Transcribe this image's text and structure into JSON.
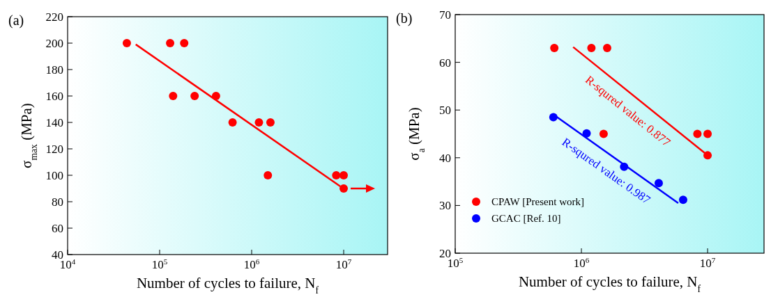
{
  "chart_data": [
    {
      "type": "scatter",
      "title": "(a)",
      "xlabel": "Number of cycles to failure, N$_{f}$",
      "ylabel": "σ$_{max}$ (MPa)",
      "log": "x",
      "xlim": [
        10000,
        30000000
      ],
      "xticks": [
        {
          "value": 10000,
          "label": "10$^{4}$"
        },
        {
          "value": 100000,
          "label": "10$^{5}$"
        },
        {
          "value": 1000000,
          "label": "10$^{6}$"
        },
        {
          "value": 10000000,
          "label": "10$^{7}$"
        }
      ],
      "ylim": [
        40,
        220
      ],
      "yticks": [
        40,
        60,
        80,
        100,
        120,
        140,
        160,
        180,
        200,
        220
      ],
      "series": [
        {
          "color": "#ff0000",
          "marker": "circle",
          "x": [
            44000,
            130000,
            185000,
            140000,
            240000,
            410000,
            620000,
            1200000,
            1600000,
            1500000,
            8300000,
            10000000,
            10000000
          ],
          "values": [
            200,
            200,
            200,
            160,
            160,
            160,
            140,
            140,
            140,
            100,
            100,
            100,
            90
          ]
        },
        {
          "type": "line",
          "color": "#ff0000",
          "x": [
            55000,
            9200000
          ],
          "values": [
            199,
            91.6
          ]
        }
      ]
    },
    {
      "type": "scatter",
      "title": "(b)",
      "xlabel": "Number of cycles to failure, N$_{f}$",
      "ylabel": "σ$_{a}$ (MPa)",
      "log": "x",
      "legend": "bottom left",
      "xlim": [
        100000,
        28000000
      ],
      "xticks": [
        {
          "value": 100000,
          "label": "10$^{5}$"
        },
        {
          "value": 1000000,
          "label": "10$^{6}$"
        },
        {
          "value": 10000000,
          "label": "10$^{7}$"
        }
      ],
      "ylim": [
        20,
        70
      ],
      "yticks": [
        20,
        30,
        40,
        50,
        60,
        70
      ],
      "series": [
        {
          "name": "CPAW [Present work]",
          "marker": "circle",
          "color": "#ff0000",
          "x": [
            610000,
            1200000,
            1600000,
            1500000,
            8300000,
            10000000,
            10000000
          ],
          "values": [
            63,
            63,
            63,
            45,
            45,
            45,
            40.5
          ]
        },
        {
          "name": "GCAC [Ref. 10]",
          "marker": "circle",
          "color": "#0000ff",
          "x": [
            600000,
            1100000,
            2180000,
            4100000,
            6400000
          ],
          "values": [
            48.5,
            45.1,
            38.1,
            34.7,
            31.2
          ]
        },
        {
          "type": "line",
          "color": "#ff0000",
          "x": [
            860000,
            9500000
          ],
          "values": [
            63.2,
            41
          ]
        },
        {
          "type": "line",
          "color": "#0000ff",
          "x": [
            620000,
            5850000
          ],
          "values": [
            48.8,
            30.5
          ]
        }
      ],
      "annotations": [
        "R-squred value: 0.877",
        "R-squred value: 0.987"
      ]
    }
  ]
}
